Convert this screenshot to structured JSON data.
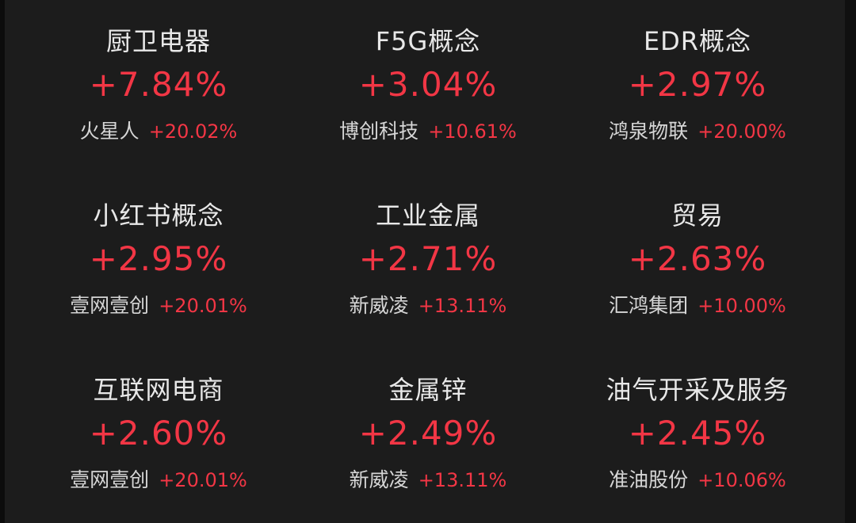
{
  "sectors": [
    {
      "name": "厨卫电器",
      "change": "+7.84%",
      "stock": "火星人",
      "stock_change": "+20.02%"
    },
    {
      "name": "F5G概念",
      "change": "+3.04%",
      "stock": "博创科技",
      "stock_change": "+10.61%"
    },
    {
      "name": "EDR概念",
      "change": "+2.97%",
      "stock": "鸿泉物联",
      "stock_change": "+20.00%"
    },
    {
      "name": "小红书概念",
      "change": "+2.95%",
      "stock": "壹网壹创",
      "stock_change": "+20.01%"
    },
    {
      "name": "工业金属",
      "change": "+2.71%",
      "stock": "新威凌",
      "stock_change": "+13.11%"
    },
    {
      "name": "贸易",
      "change": "+2.63%",
      "stock": "汇鸿集团",
      "stock_change": "+10.00%"
    },
    {
      "name": "互联网电商",
      "change": "+2.60%",
      "stock": "壹网壹创",
      "stock_change": "+20.01%"
    },
    {
      "name": "金属锌",
      "change": "+2.49%",
      "stock": "新威凌",
      "stock_change": "+13.11%"
    },
    {
      "name": "油气开采及服务",
      "change": "+2.45%",
      "stock": "准油股份",
      "stock_change": "+10.06%"
    }
  ],
  "colors": {
    "background": "#1c1c1c",
    "up": "#f23645",
    "text": "#e8e8e8"
  }
}
